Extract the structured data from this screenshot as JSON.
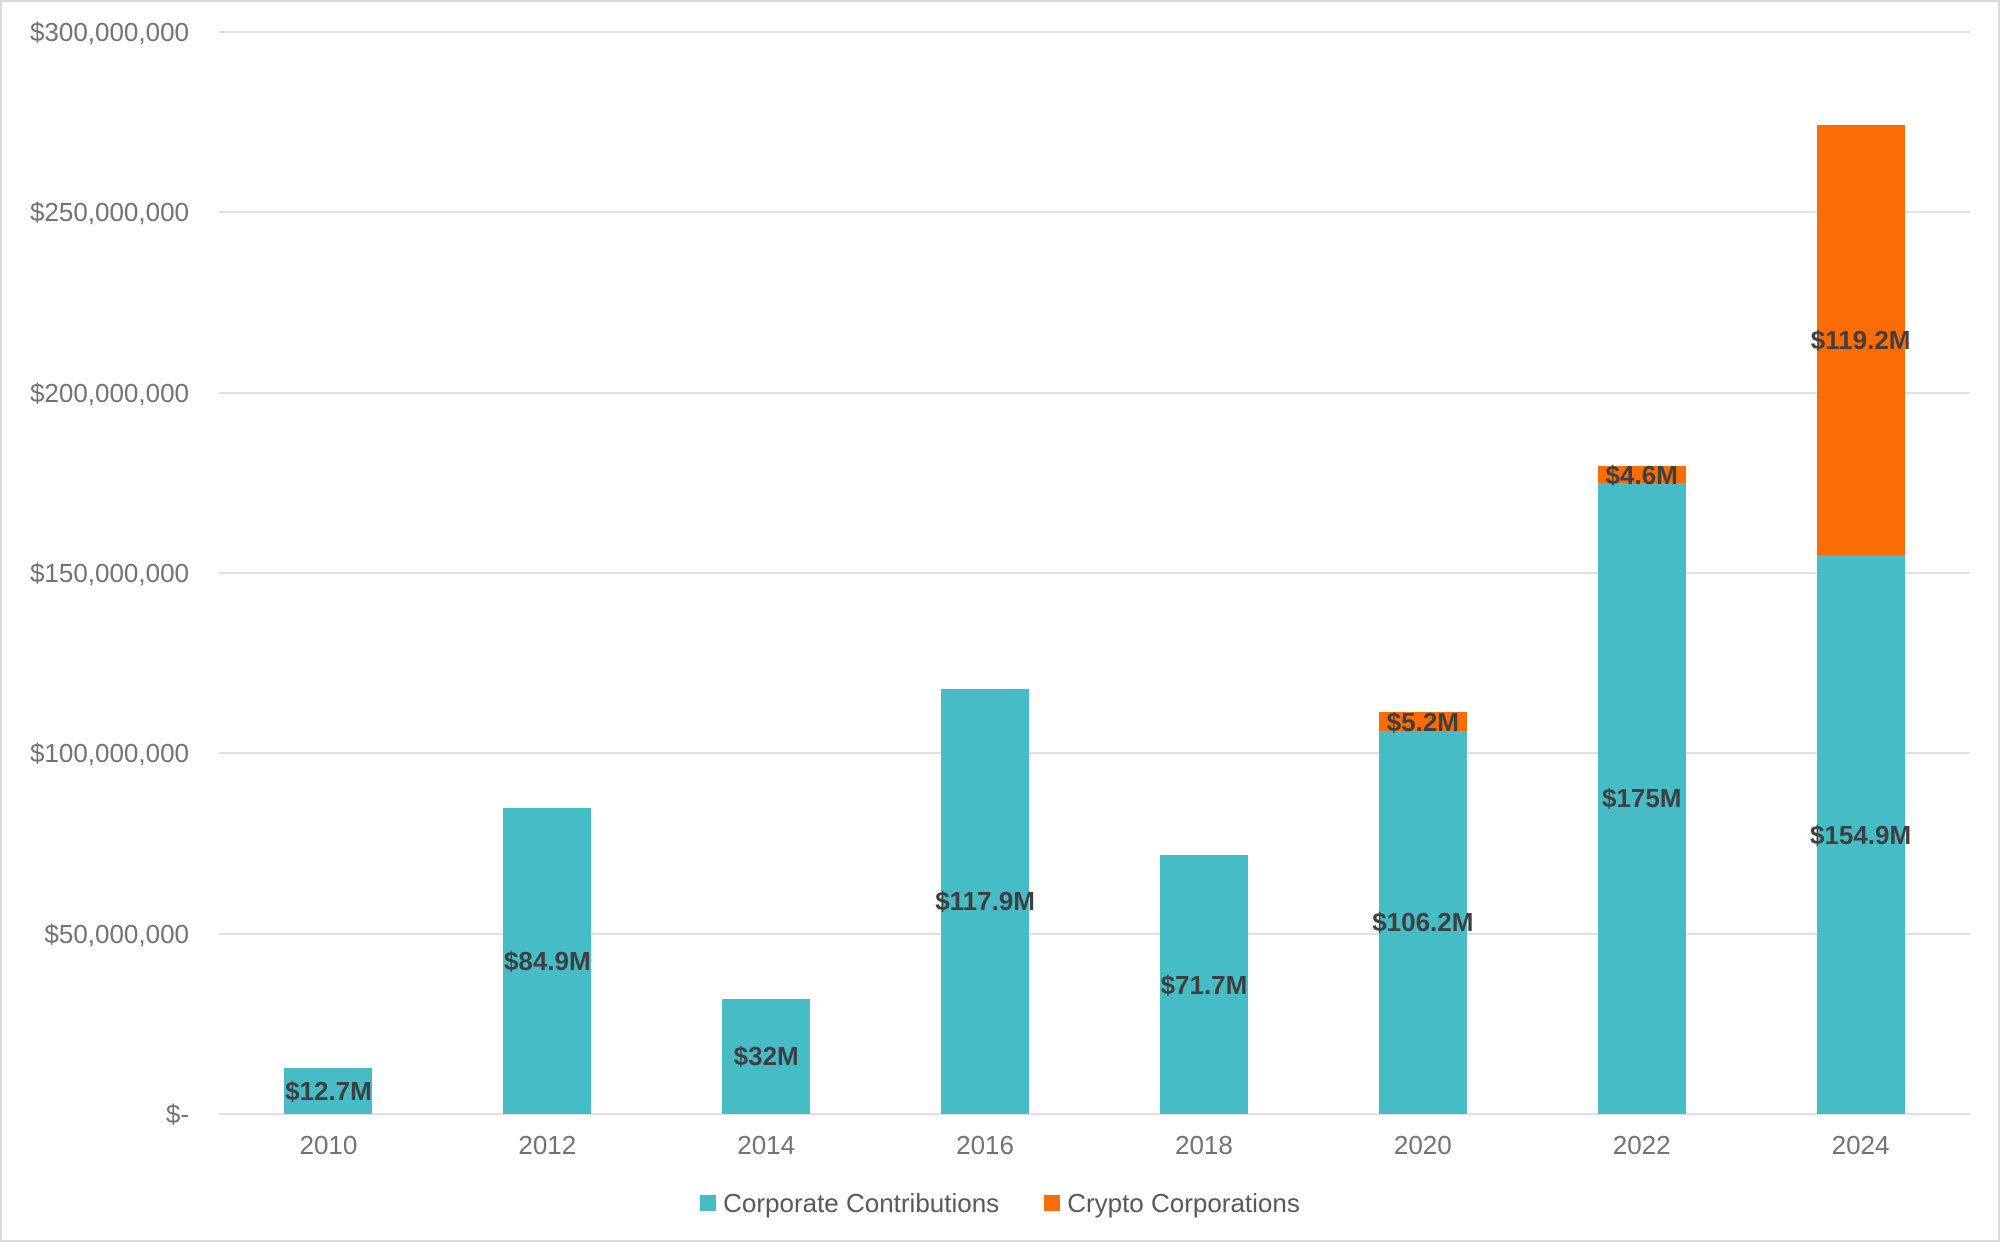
{
  "chart_data": {
    "type": "bar",
    "stacked": true,
    "title": "",
    "categories": [
      "2010",
      "2012",
      "2014",
      "2016",
      "2018",
      "2020",
      "2022",
      "2024"
    ],
    "series": [
      {
        "name": "Corporate Contributions",
        "color": "#45BCC6",
        "values": [
          12700000,
          84900000,
          32000000,
          117900000,
          71700000,
          106200000,
          175000000,
          154900000
        ],
        "labels": [
          "$12.7M",
          "$84.9M",
          "$32M",
          "$117.9M",
          "$71.7M",
          "$106.2M",
          "$175M",
          "$154.9M"
        ]
      },
      {
        "name": "Crypto Corporations",
        "color": "#FB6D04",
        "values": [
          0,
          0,
          0,
          0,
          0,
          5200000,
          4600000,
          119200000
        ],
        "labels": [
          "",
          "",
          "",
          "",
          "",
          "$5.2M",
          "$4.6M",
          "$119.2M"
        ]
      }
    ],
    "y_axis": {
      "min": 0,
      "max": 300000000,
      "step": 50000000,
      "tick_labels": [
        "$-",
        "$50,000,000",
        "$100,000,000",
        "$150,000,000",
        "$200,000,000",
        "$250,000,000",
        "$300,000,000"
      ]
    },
    "x_axis": {
      "tick_labels": [
        "2010",
        "2012",
        "2014",
        "2016",
        "2018",
        "2020",
        "2022",
        "2024"
      ]
    },
    "legend": {
      "position": "bottom",
      "items": [
        {
          "label": "Corporate Contributions",
          "color": "#45BCC6"
        },
        {
          "label": "Crypto Corporations",
          "color": "#FB6D04"
        }
      ]
    },
    "grid": true,
    "colors": {
      "data_label": "#3F3F3F",
      "axis_label": "#737373",
      "legend_label": "#595959",
      "gridline": "#E1E1E1",
      "background": "#FFFFFF",
      "border": "#D9D9D9"
    }
  }
}
